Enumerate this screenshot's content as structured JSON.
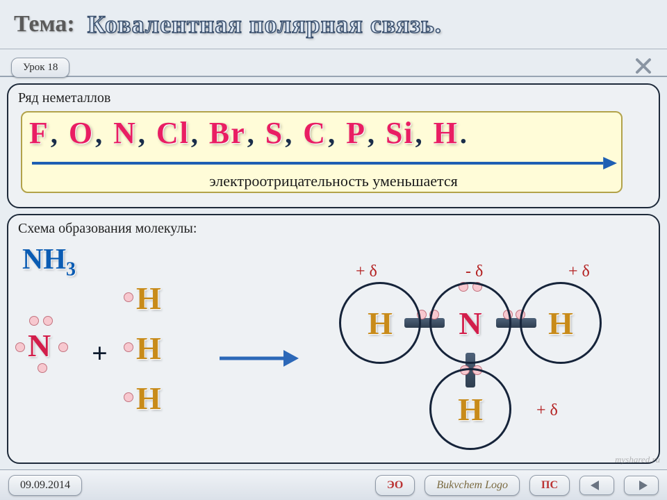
{
  "header": {
    "tema_label": "Тема:",
    "tema_title": "Ковалентная полярная связь."
  },
  "lesson_tab": "Урок 18",
  "panel1": {
    "title": "Ряд неметаллов",
    "elements": [
      "F",
      "O",
      "N",
      "Cl",
      "Br",
      "S",
      "C",
      "P",
      "Si",
      "H"
    ],
    "arrow_color": "#1e5fb3",
    "yellow_bg": "#fffcd8",
    "label_below": "электроотрицательность уменьшается"
  },
  "panel2": {
    "title": "Схема образования молекулы:",
    "formula": {
      "text": "NH",
      "sub": "3",
      "color": "#0b5cb3"
    },
    "reactant_N": {
      "symbol": "N",
      "color": "#d21e4b"
    },
    "reactant_H": {
      "symbol": "H",
      "color": "#c88b1a"
    },
    "plus": "+",
    "arrow_color": "#2c68b8",
    "product": {
      "center": {
        "symbol": "N",
        "color": "#d21e4b",
        "circle_border": "#16243a",
        "delta": "- δ"
      },
      "around": [
        {
          "symbol": "H",
          "delta": "+ δ",
          "pos": "left"
        },
        {
          "symbol": "H",
          "delta": "+ δ",
          "pos": "right"
        },
        {
          "symbol": "H",
          "delta": "+ δ",
          "pos": "bottom"
        }
      ],
      "bond_color": "#3a4c60"
    },
    "dot_fill": "#f7c8cf",
    "dot_border": "#c2737f"
  },
  "footer": {
    "date": "09.09.2014",
    "btn_eo": "ЭО",
    "btn_ps": "ПС",
    "logo": "Bukvchem Logo"
  },
  "watermark": "myshared.ru",
  "colors": {
    "page_bg": "#e8edf2",
    "panel_border": "#1e2a3a",
    "element_color": "#e91e63",
    "comma_color": "#1a2d4a"
  }
}
